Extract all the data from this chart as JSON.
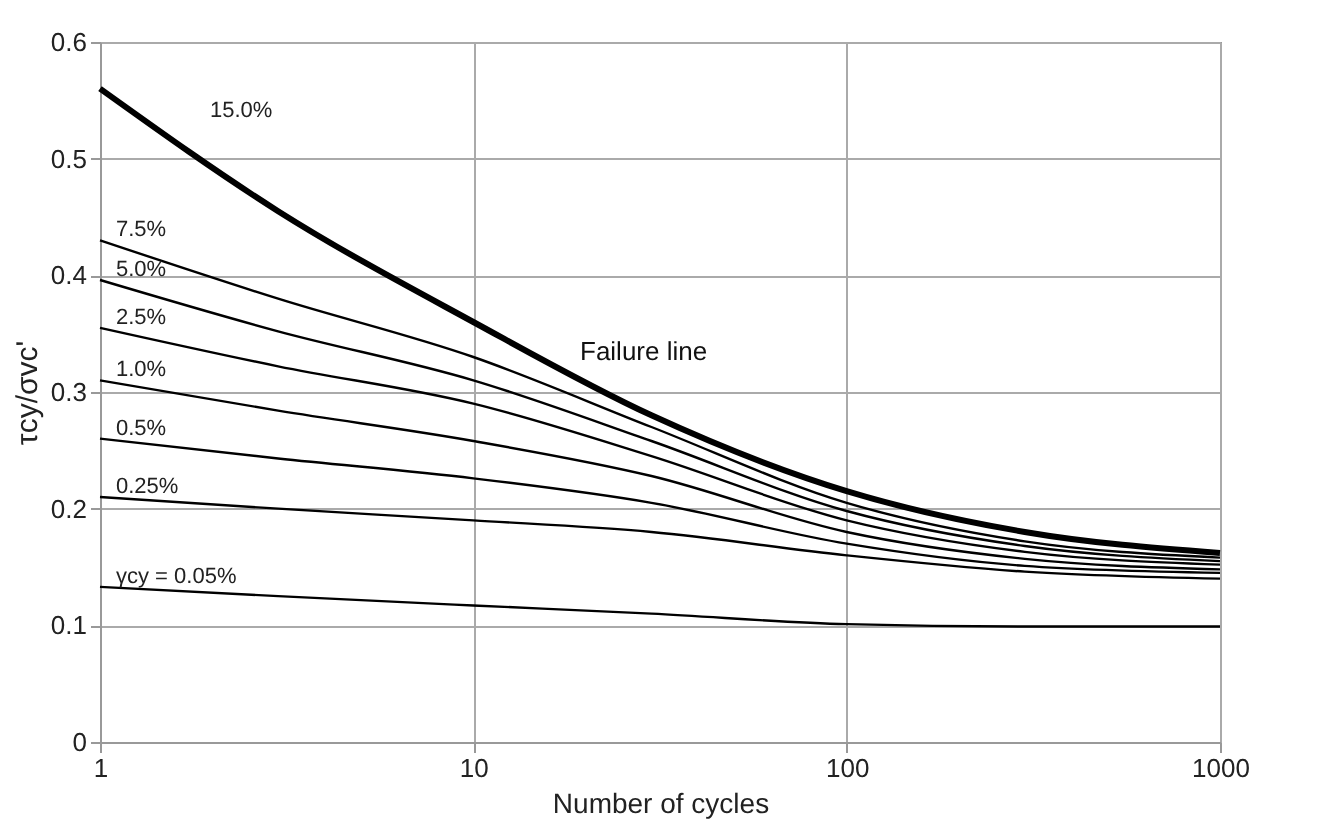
{
  "chart_data": {
    "type": "line",
    "xlabel": "Number of cycles",
    "ylabel": "τcy/σvc'",
    "x": [
      1,
      3,
      10,
      30,
      100,
      300,
      1000
    ],
    "series": [
      {
        "name": "15.0%",
        "color": "#000000",
        "values": [
          0.56,
          0.455,
          0.36,
          0.28,
          0.215,
          0.18,
          0.162
        ]
      },
      {
        "name": "7.5%",
        "color": "#000000",
        "values": [
          0.43,
          0.38,
          0.33,
          0.27,
          0.205,
          0.172,
          0.158
        ]
      },
      {
        "name": "5.0%",
        "color": "#000000",
        "values": [
          0.396,
          0.352,
          0.31,
          0.258,
          0.198,
          0.168,
          0.155
        ]
      },
      {
        "name": "2.5%",
        "color": "#000000",
        "values": [
          0.355,
          0.322,
          0.29,
          0.245,
          0.19,
          0.163,
          0.152
        ]
      },
      {
        "name": "1.0%",
        "color": "#000000",
        "values": [
          0.31,
          0.284,
          0.258,
          0.228,
          0.18,
          0.157,
          0.148
        ]
      },
      {
        "name": "0.5%",
        "color": "#000000",
        "values": [
          0.26,
          0.243,
          0.226,
          0.205,
          0.17,
          0.151,
          0.145
        ]
      },
      {
        "name": "0.25%",
        "color": "#000000",
        "values": [
          0.21,
          0.2,
          0.19,
          0.18,
          0.16,
          0.146,
          0.14
        ]
      },
      {
        "name": "γcy = 0.05%",
        "color": "#000000",
        "values": [
          0.133,
          0.125,
          0.117,
          0.11,
          0.101,
          0.099,
          0.099
        ]
      }
    ],
    "annotations": [
      "Failure line"
    ],
    "xlim": [
      1,
      1000
    ],
    "xticks": [
      1,
      10,
      100,
      1000
    ],
    "ylim": [
      0,
      0.6
    ],
    "yticks": [
      0,
      0.1,
      0.2,
      0.3,
      0.4,
      0.5,
      0.6
    ],
    "log": "x",
    "grid": true,
    "marker": "none",
    "line_style": "solid"
  }
}
